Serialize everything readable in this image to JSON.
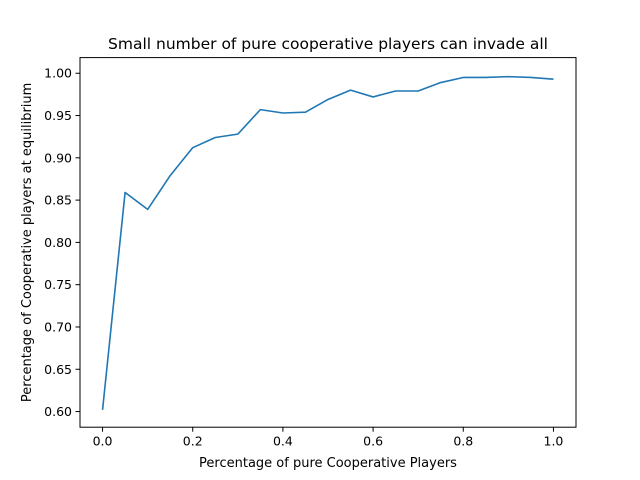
{
  "chart_data": {
    "type": "line",
    "title": "Small number of pure cooperative players can invade all",
    "xlabel": "Percentage of pure Cooperative Players",
    "ylabel": "Percentage of Cooperative players at equilibrium",
    "xlim": [
      -0.05,
      1.05
    ],
    "ylim": [
      0.5815,
      1.0185
    ],
    "grid": false,
    "x_ticks": [
      0.0,
      0.2,
      0.4,
      0.6,
      0.8,
      1.0
    ],
    "x_tick_labels": [
      "0.0",
      "0.2",
      "0.4",
      "0.6",
      "0.8",
      "1.0"
    ],
    "y_ticks": [
      0.6,
      0.65,
      0.7,
      0.75,
      0.8,
      0.85,
      0.9,
      0.95,
      1.0
    ],
    "y_tick_labels": [
      "0.60",
      "0.65",
      "0.70",
      "0.75",
      "0.80",
      "0.85",
      "0.90",
      "0.95",
      "1.00"
    ],
    "series": [
      {
        "color": "#1f77b4",
        "x": [
          0.0,
          0.05,
          0.1,
          0.15,
          0.2,
          0.25,
          0.3,
          0.35,
          0.4,
          0.45,
          0.5,
          0.55,
          0.6,
          0.65,
          0.7,
          0.75,
          0.8,
          0.85,
          0.9,
          0.95,
          1.0
        ],
        "y": [
          0.602,
          0.859,
          0.839,
          0.879,
          0.912,
          0.924,
          0.928,
          0.957,
          0.953,
          0.954,
          0.969,
          0.98,
          0.972,
          0.979,
          0.979,
          0.989,
          0.995,
          0.995,
          0.996,
          0.995,
          0.993
        ]
      }
    ]
  }
}
